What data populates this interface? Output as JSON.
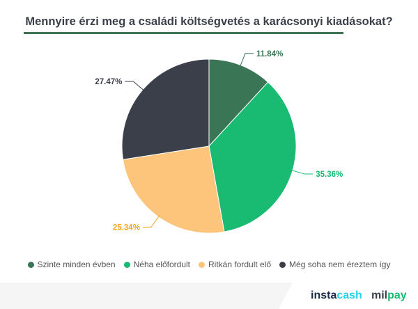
{
  "title": "Mennyire érzi meg a családi költségvetés a karácsonyi kiadásokat?",
  "chart_data": {
    "type": "pie",
    "title": "Mennyire érzi meg a családi költségvetés a karácsonyi kiadásokat?",
    "legend_position": "bottom",
    "slices": [
      {
        "name": "Szinte minden évben",
        "value": 11.84,
        "label": "11.84%",
        "color": "#3a7556"
      },
      {
        "name": "Néha előfordult",
        "value": 35.36,
        "label": "35.36%",
        "color": "#19bb72"
      },
      {
        "name": "Ritkán fordult elő",
        "value": 25.34,
        "label": "25.34%",
        "color": "#fdc57b"
      },
      {
        "name": "Még soha nem éreztem így",
        "value": 27.47,
        "label": "27.47%",
        "color": "#3b3f4a"
      }
    ]
  },
  "logos": {
    "instacash": [
      "insta",
      "cash"
    ],
    "milpay": [
      "mil",
      "pay"
    ]
  }
}
